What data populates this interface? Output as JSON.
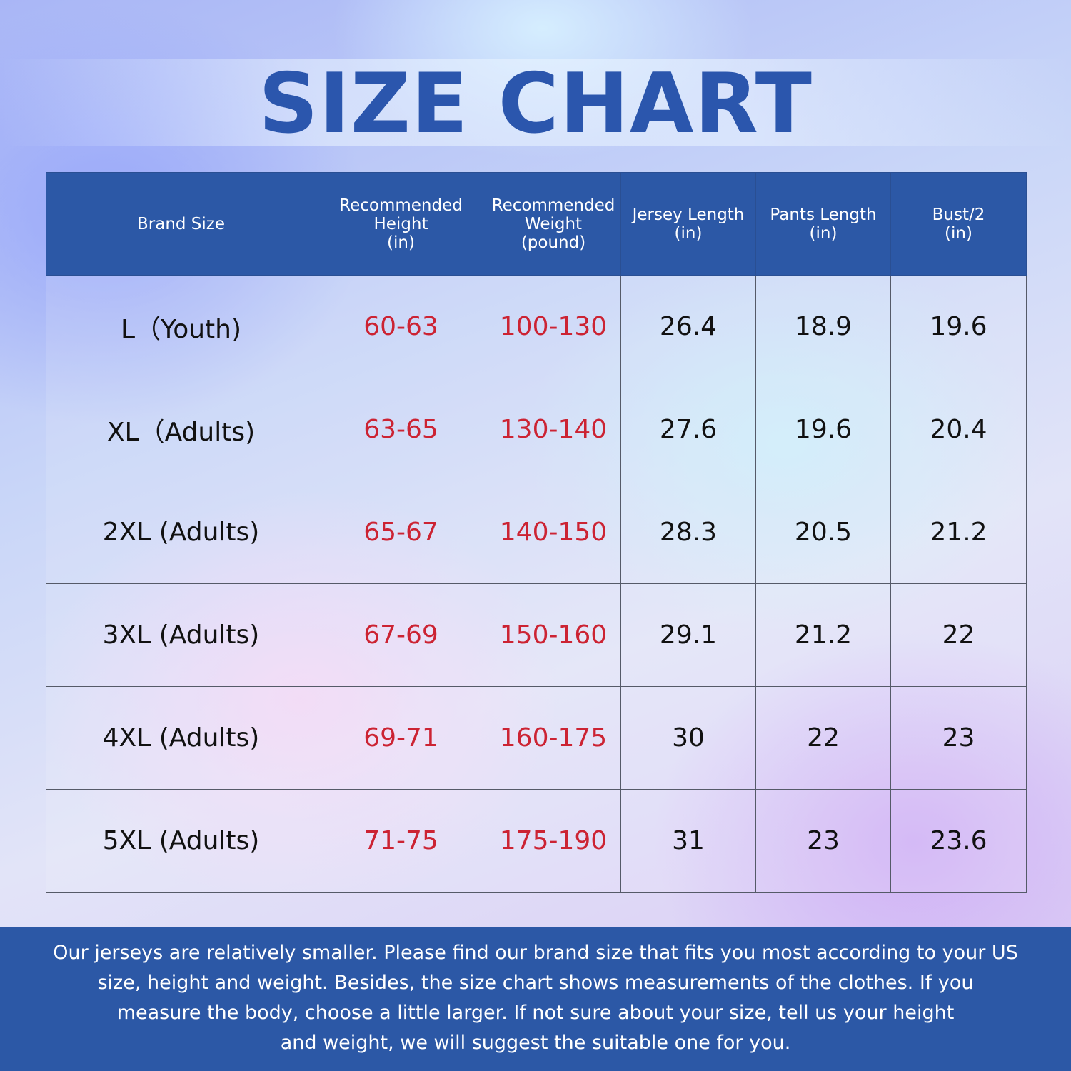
{
  "title": "SIZE CHART",
  "table": {
    "headers": [
      [
        "Brand Size"
      ],
      [
        "Recommended",
        "Height",
        "(in)"
      ],
      [
        "Recommended",
        "Weight",
        "(pound)"
      ],
      [
        "Jersey Length",
        "(in)"
      ],
      [
        "Pants Length",
        "(in)"
      ],
      [
        "Bust/2",
        "(in)"
      ]
    ],
    "rows": [
      [
        "L（Youth)",
        "60-63",
        "100-130",
        "26.4",
        "18.9",
        "19.6"
      ],
      [
        "XL（Adults)",
        "63-65",
        "130-140",
        "27.6",
        "19.6",
        "20.4"
      ],
      [
        "2XL (Adults)",
        "65-67",
        "140-150",
        "28.3",
        "20.5",
        "21.2"
      ],
      [
        "3XL (Adults)",
        "67-69",
        "150-160",
        "29.1",
        "21.2",
        "22"
      ],
      [
        "4XL (Adults)",
        "69-71",
        "160-175",
        "30",
        "22",
        "23"
      ],
      [
        "5XL (Adults)",
        "71-75",
        "175-190",
        "31",
        "23",
        "23.6"
      ]
    ]
  },
  "footer": {
    "lines": [
      "Our jerseys are relatively smaller. Please find our brand size that fits you most according to your US",
      "size, height and weight. Besides, the size chart shows measurements of the clothes. If you",
      "measure the body, choose a little larger. If not sure about your size, tell us your height",
      "and weight, we will suggest the suitable one for you."
    ]
  },
  "colors": {
    "header_bg": "#2c58a6",
    "title": "#2b56ad",
    "recommended_values": "#cc2333",
    "measurement_values": "#111111"
  }
}
